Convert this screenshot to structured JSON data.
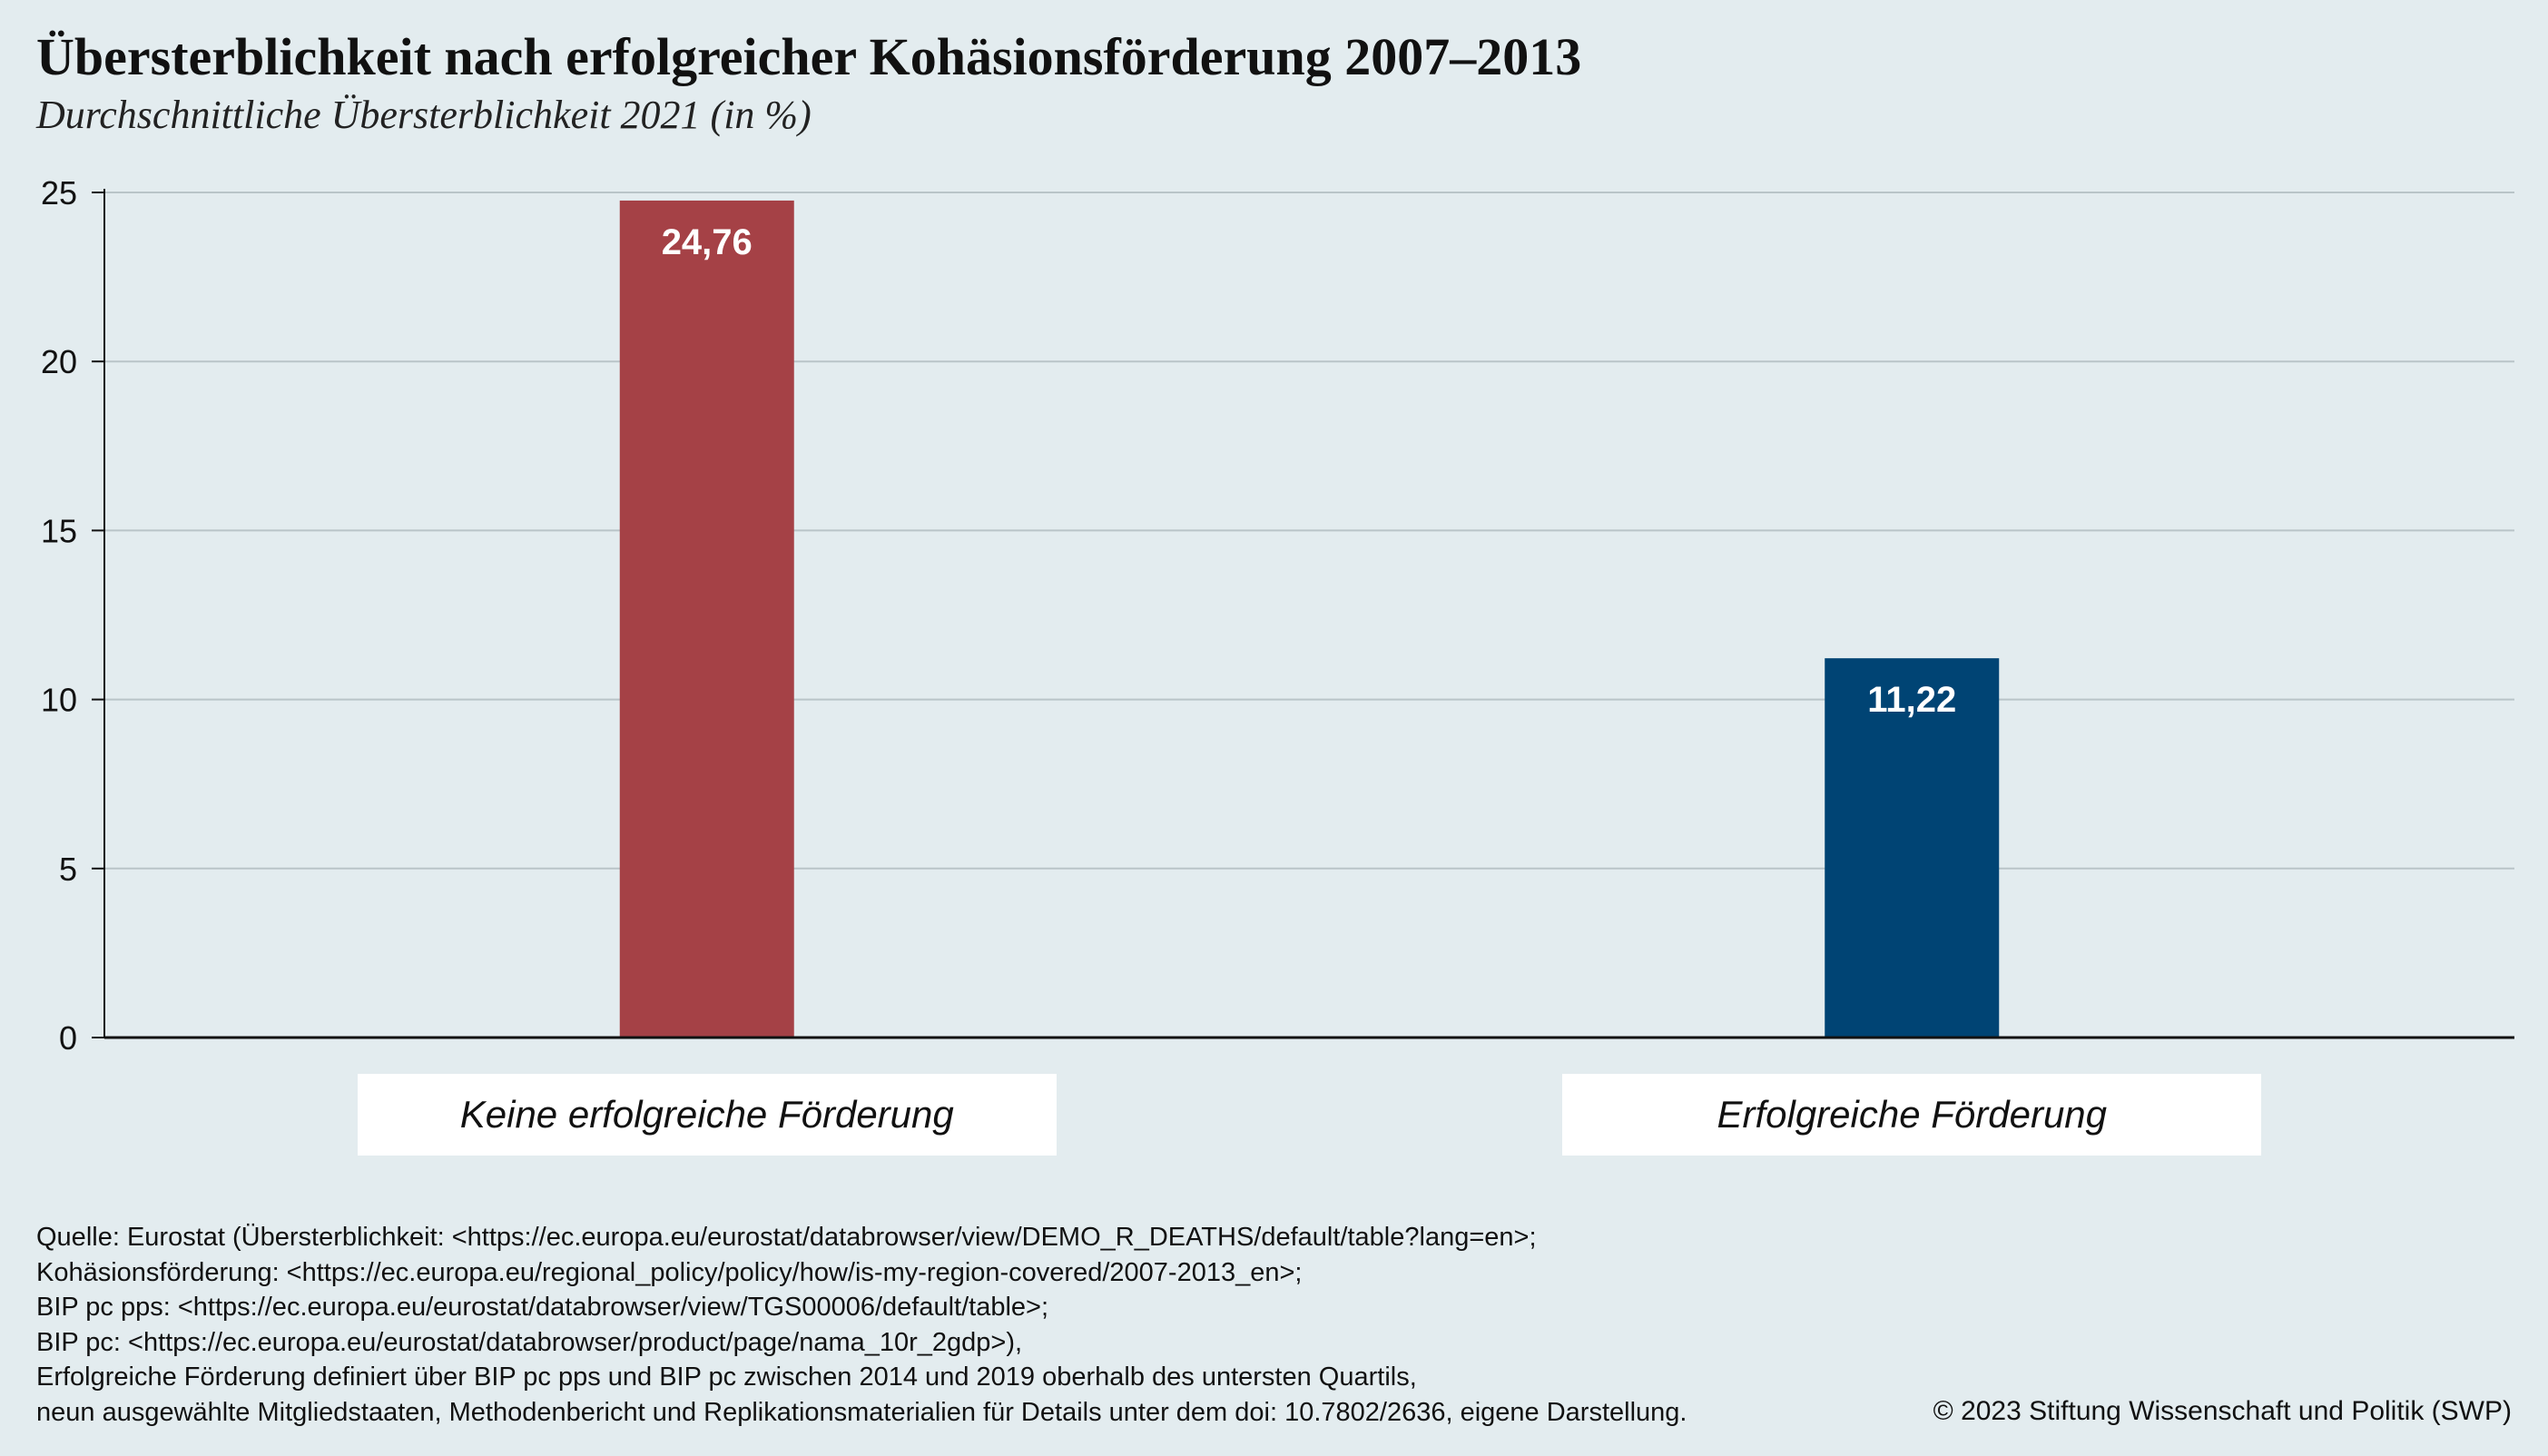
{
  "title": "Übersterblichkeit nach erfolgreicher Kohäsionsförderung 2007–2013",
  "subtitle": "Durchschnittliche Übersterblichkeit 2021 (in %)",
  "chart_data": {
    "type": "bar",
    "categories": [
      "Keine erfolgreiche Förderung",
      "Erfolgreiche Förderung"
    ],
    "values": [
      24.76,
      11.22
    ],
    "value_labels": [
      "24,76",
      "11,22"
    ],
    "bar_colors": [
      "#a54146",
      "#004474"
    ],
    "ylim": [
      0,
      25
    ],
    "yticks": [
      0,
      5,
      10,
      15,
      20,
      25
    ],
    "ytick_labels": [
      "0",
      "5",
      "10",
      "15",
      "20",
      "25"
    ],
    "grid": true,
    "legend": "none"
  },
  "footer": {
    "lines": [
      "Quelle: Eurostat (Übersterblichkeit: <https://ec.europa.eu/eurostat/databrowser/view/DEMO_R_DEATHS/default/table?lang=en>;",
      "Kohäsionsförderung: <https://ec.europa.eu/regional_policy/policy/how/is-my-region-covered/2007-2013_en>;",
      "BIP pc pps: <https://ec.europa.eu/eurostat/databrowser/view/TGS00006/default/table>;",
      "BIP pc: <https://ec.europa.eu/eurostat/databrowser/product/page/nama_10r_2gdp>),",
      "Erfolgreiche Förderung definiert über BIP pc pps und BIP pc zwischen 2014 und 2019 oberhalb des untersten Quartils,",
      "neun ausgewählte Mitgliedstaaten, Methodenbericht und Replikationsmaterialien für Details unter dem doi: 10.7802/2636, eigene Darstellung."
    ],
    "copyright": "© 2023 Stiftung Wissenschaft und Politik (SWP)"
  }
}
